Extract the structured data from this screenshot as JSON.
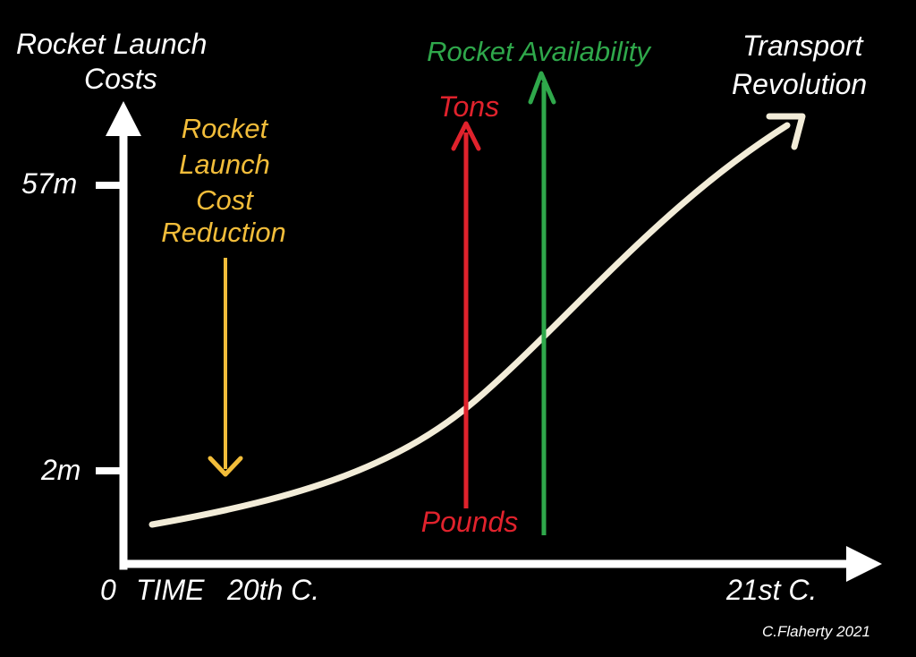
{
  "title_left": [
    "Rocket Launch",
    "Costs"
  ],
  "title_right": [
    "Transport",
    "Revolution"
  ],
  "y_ticks": [
    {
      "label": "57m"
    },
    {
      "label": "2m"
    }
  ],
  "x_labels": {
    "origin": "0",
    "time": "TIME",
    "start": "20th C.",
    "end": "21st C."
  },
  "cost_reduction": {
    "lines": [
      "Rocket",
      "Launch",
      "Cost",
      "Reduction"
    ],
    "color": "#f2bd3a"
  },
  "payload": {
    "top": "Tons",
    "bottom": "Pounds",
    "color": "#e0222c"
  },
  "availability": {
    "label": "Rocket Availability",
    "color": "#2fa84b"
  },
  "curve_color": "#f2ecd8",
  "credit": "C.Flaherty 2021"
}
